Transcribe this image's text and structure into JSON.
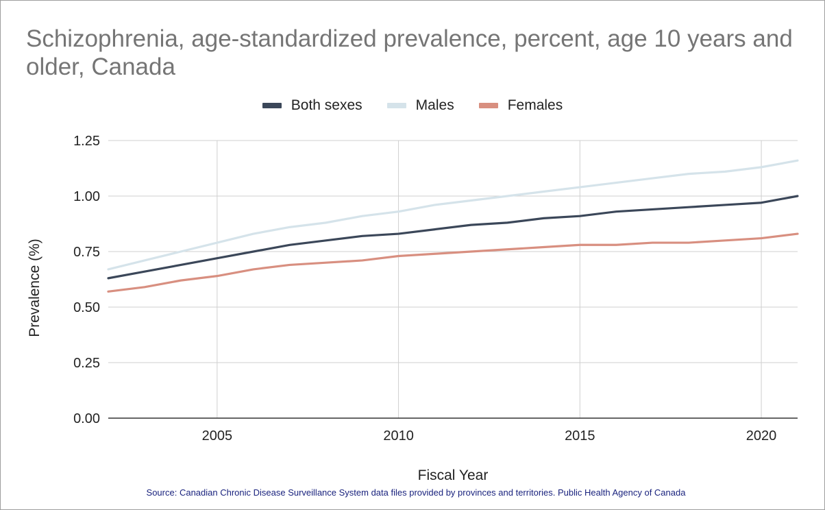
{
  "chart_data": {
    "type": "line",
    "title": "Schizophrenia, age-standardized prevalence, percent, age 10 years and older, Canada",
    "xlabel": "Fiscal Year",
    "ylabel": "Prevalence (%)",
    "source": "Source: Canadian Chronic Disease Surveillance System data files provided by provinces and territories. Public Health Agency of Canada",
    "xlim": [
      2002,
      2021
    ],
    "ylim": [
      0,
      1.25
    ],
    "xticks": [
      "2005",
      "2010",
      "2015",
      "2020"
    ],
    "yticks": [
      "0.00",
      "0.25",
      "0.50",
      "0.75",
      "1.00",
      "1.25"
    ],
    "grid": true,
    "legend_position": "top",
    "x": [
      2002,
      2003,
      2004,
      2005,
      2006,
      2007,
      2008,
      2009,
      2010,
      2011,
      2012,
      2013,
      2014,
      2015,
      2016,
      2017,
      2018,
      2019,
      2020,
      2021
    ],
    "series": [
      {
        "name": "Both sexes",
        "color": "#3b4759",
        "values": [
          0.63,
          0.66,
          0.69,
          0.72,
          0.75,
          0.78,
          0.8,
          0.82,
          0.83,
          0.85,
          0.87,
          0.88,
          0.9,
          0.91,
          0.93,
          0.94,
          0.95,
          0.96,
          0.97,
          1.0
        ]
      },
      {
        "name": "Males",
        "color": "#d5e3ea",
        "values": [
          0.67,
          0.71,
          0.75,
          0.79,
          0.83,
          0.86,
          0.88,
          0.91,
          0.93,
          0.96,
          0.98,
          1.0,
          1.02,
          1.04,
          1.06,
          1.08,
          1.1,
          1.11,
          1.13,
          1.16
        ]
      },
      {
        "name": "Females",
        "color": "#d88f80",
        "values": [
          0.57,
          0.59,
          0.62,
          0.64,
          0.67,
          0.69,
          0.7,
          0.71,
          0.73,
          0.74,
          0.75,
          0.76,
          0.77,
          0.78,
          0.78,
          0.79,
          0.79,
          0.8,
          0.81,
          0.83
        ]
      }
    ]
  }
}
